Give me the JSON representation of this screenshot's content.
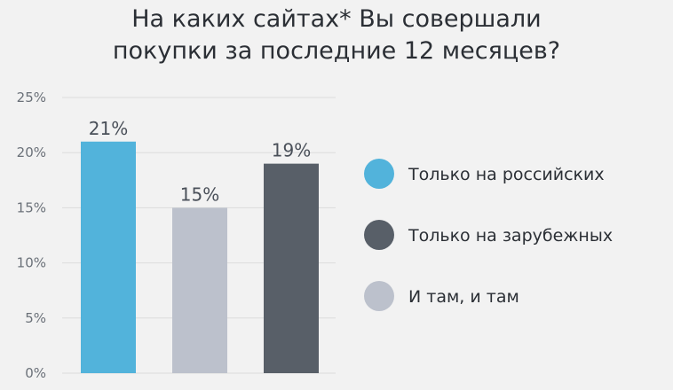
{
  "chart_data": {
    "type": "bar",
    "title_lines": [
      "На каких сайтах* Вы совершали",
      "покупки за последние 12 месяцев?"
    ],
    "categories": [
      "Только на российских",
      "Только на зарубежных",
      "И там, и там"
    ],
    "values": [
      21,
      19,
      15
    ],
    "value_labels": [
      "21%",
      "19%",
      "15%"
    ],
    "bar_order": [
      0,
      2,
      1
    ],
    "colors": [
      "#52b3db",
      "#585f68",
      "#bcc1cc"
    ],
    "ylim": [
      0,
      25
    ],
    "yticks": [
      0,
      5,
      10,
      15,
      20,
      25
    ],
    "ytick_labels": [
      "0%",
      "5%",
      "10%",
      "15%",
      "20%",
      "25%"
    ],
    "grid": true,
    "legend_position": "right"
  }
}
